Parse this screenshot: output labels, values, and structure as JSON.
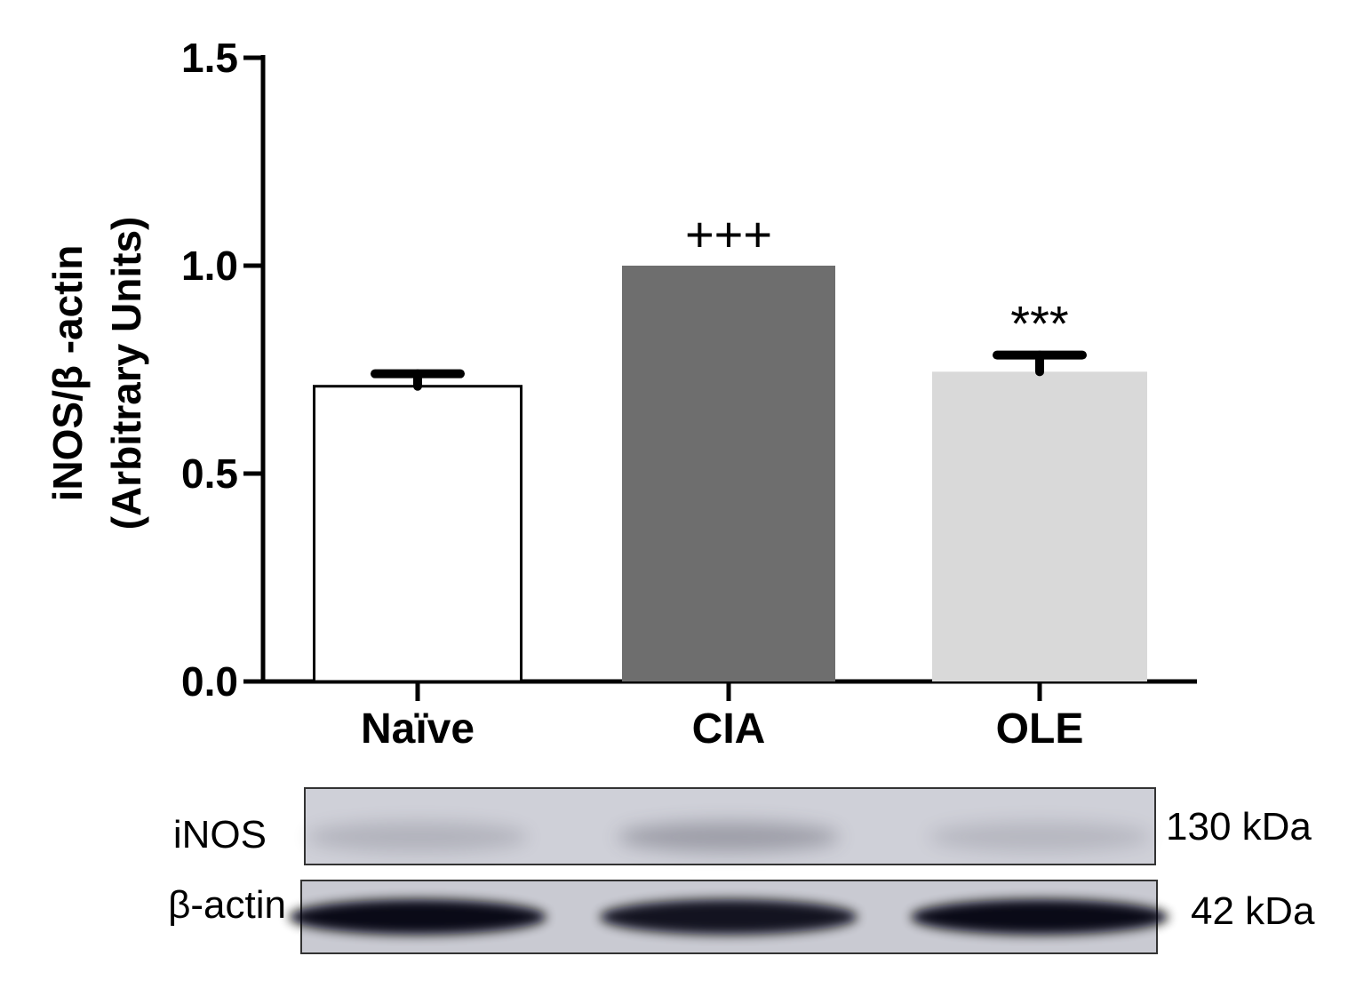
{
  "chart_data": {
    "type": "bar",
    "categories": [
      "Naïve",
      "CIA",
      "OLE"
    ],
    "values": [
      0.71,
      1.0,
      0.745
    ],
    "errors": [
      0.03,
      0.0,
      0.04
    ],
    "bar_colors": [
      "#ffffff",
      "#6e6e6e",
      "#d9d9d9"
    ],
    "bar_outline": "#000000",
    "significance": [
      "",
      "+++",
      "***"
    ],
    "ylabel_line1": "iNOS/β -actin",
    "ylabel_line2": "(Arbitrary Units)",
    "ylim": [
      0,
      1.5
    ],
    "yticks": [
      "0.0",
      "0.5",
      "1.0",
      "1.5"
    ],
    "ytick_values": [
      0,
      0.5,
      1.0,
      1.5
    ],
    "grid": false
  },
  "blot": {
    "rows": [
      {
        "label": "iNOS",
        "size": "130 kDa",
        "band_intensity": [
          0.35,
          0.6,
          0.3
        ]
      },
      {
        "label": "β-actin",
        "size": "42 kDa",
        "band_intensity": [
          1.0,
          0.95,
          1.0
        ]
      }
    ]
  }
}
